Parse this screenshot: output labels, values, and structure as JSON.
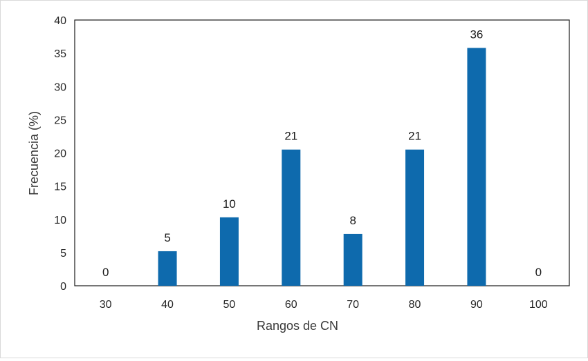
{
  "chart_data": {
    "type": "bar",
    "categories": [
      "30",
      "40",
      "50",
      "60",
      "70",
      "80",
      "90",
      "100"
    ],
    "values": [
      0,
      5.2,
      10.3,
      20.5,
      7.8,
      20.5,
      35.8,
      0
    ],
    "data_labels": [
      "0",
      "5",
      "10",
      "21",
      "8",
      "21",
      "36",
      "0"
    ],
    "xlabel": "Rangos de CN",
    "ylabel": "Frecuencia (%)",
    "ylim": [
      0,
      40
    ],
    "yticks": [
      "0",
      "5",
      "10",
      "15",
      "20",
      "25",
      "30",
      "35",
      "40"
    ],
    "bar_color": "#0e6aad",
    "grid": false,
    "legend": "none"
  }
}
